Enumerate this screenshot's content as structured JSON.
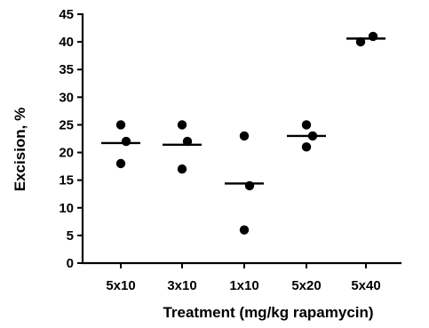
{
  "chart_data": {
    "type": "scatter",
    "title": "",
    "xlabel": "Treatment (mg/kg rapamycin)",
    "ylabel": "Excision, %",
    "categories": [
      "5x10",
      "3x10",
      "1x10",
      "5x20",
      "5x40"
    ],
    "ylim": [
      0,
      45
    ],
    "yticks": [
      0,
      5,
      10,
      15,
      20,
      25,
      30,
      35,
      40,
      45
    ],
    "grid": false,
    "legend": "none",
    "groups": [
      {
        "category": "5x10",
        "points": [
          25,
          22,
          18
        ],
        "mean": 21.7
      },
      {
        "category": "3x10",
        "points": [
          25,
          22,
          17
        ],
        "mean": 21.4
      },
      {
        "category": "1x10",
        "points": [
          23,
          14,
          6
        ],
        "mean": 14.4
      },
      {
        "category": "5x20",
        "points": [
          25,
          23,
          21
        ],
        "mean": 23.0
      },
      {
        "category": "5x40",
        "points": [
          40,
          41
        ],
        "mean": 40.6
      }
    ],
    "colors": {
      "points": "#000000",
      "axes": "#000000"
    }
  }
}
